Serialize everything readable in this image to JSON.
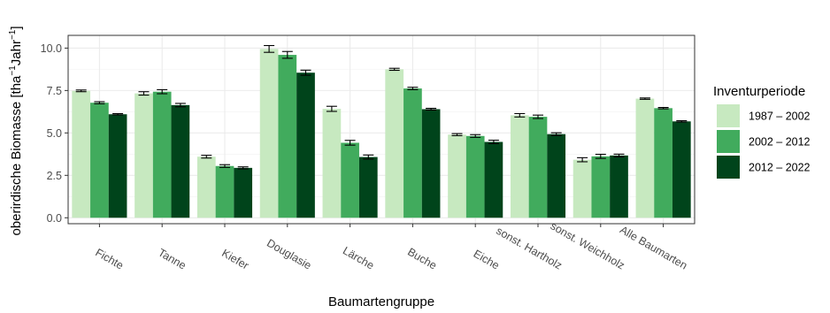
{
  "chart_data": {
    "type": "bar",
    "xlabel": "Baumartengruppe",
    "ylabel_main": "oberirdische Biomasse [tha",
    "ylabel_sup1": "−1",
    "ylabel_mid": "Jahr",
    "ylabel_sup2": "−1",
    "ylabel_end": "]",
    "ylim": [
      -0.35,
      10.75
    ],
    "yticks": [
      {
        "value": 0,
        "label": "0.0"
      },
      {
        "value": 2.5,
        "label": "2.5"
      },
      {
        "value": 5,
        "label": "5.0"
      },
      {
        "value": 7.5,
        "label": "7.5"
      },
      {
        "value": 10,
        "label": "10.0"
      }
    ],
    "categories": [
      "Fichte",
      "Tanne",
      "Kiefer",
      "Douglasie",
      "Lärche",
      "Buche",
      "Eiche",
      "sonst. Hartholz",
      "sonst. Weichholz",
      "Alle Baumarten"
    ],
    "legend_title": "Inventurperiode",
    "legend_position": "right",
    "grid": true,
    "series": [
      {
        "name": "1987 – 2002",
        "color": "#c7e9c0",
        "values": [
          7.48,
          7.33,
          3.6,
          9.95,
          6.42,
          8.75,
          4.9,
          6.04,
          3.42,
          7.02
        ],
        "errors": [
          0.05,
          0.1,
          0.08,
          0.2,
          0.15,
          0.06,
          0.06,
          0.1,
          0.12,
          0.04
        ]
      },
      {
        "name": "2002 – 2012",
        "color": "#41ab5d",
        "values": [
          6.78,
          7.43,
          3.05,
          9.6,
          4.42,
          7.62,
          4.82,
          5.95,
          3.62,
          6.46
        ],
        "errors": [
          0.06,
          0.12,
          0.08,
          0.2,
          0.14,
          0.07,
          0.08,
          0.1,
          0.12,
          0.04
        ]
      },
      {
        "name": "2012 – 2022",
        "color": "#00441b",
        "values": [
          6.1,
          6.64,
          2.94,
          8.55,
          3.58,
          6.4,
          4.47,
          4.93,
          3.67,
          5.68
        ],
        "errors": [
          0.04,
          0.1,
          0.06,
          0.15,
          0.12,
          0.05,
          0.1,
          0.08,
          0.08,
          0.04
        ]
      }
    ]
  }
}
